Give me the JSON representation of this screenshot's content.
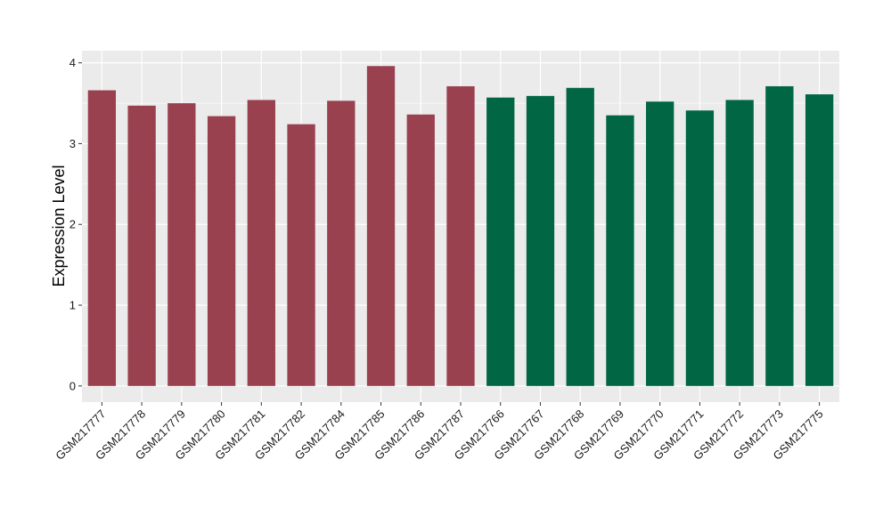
{
  "chart_data": {
    "type": "bar",
    "title": "",
    "xlabel": "",
    "ylabel": "Expression Level",
    "ylim": [
      -0.2,
      4.15
    ],
    "yticks": [
      0,
      1,
      2,
      3,
      4
    ],
    "grid": true,
    "legend": "none",
    "categories": [
      "GSM217777",
      "GSM217778",
      "GSM217779",
      "GSM217780",
      "GSM217781",
      "GSM217782",
      "GSM217784",
      "GSM217785",
      "GSM217786",
      "GSM217787",
      "GSM217766",
      "GSM217767",
      "GSM217768",
      "GSM217769",
      "GSM217770",
      "GSM217771",
      "GSM217772",
      "GSM217773",
      "GSM217775"
    ],
    "values": [
      3.66,
      3.47,
      3.5,
      3.34,
      3.54,
      3.24,
      3.53,
      3.96,
      3.36,
      3.71,
      3.57,
      3.59,
      3.69,
      3.35,
      3.52,
      3.41,
      3.54,
      3.71,
      3.61
    ],
    "bar_colors": [
      "#9a4150",
      "#9a4150",
      "#9a4150",
      "#9a4150",
      "#9a4150",
      "#9a4150",
      "#9a4150",
      "#9a4150",
      "#9a4150",
      "#9a4150",
      "#006644",
      "#006644",
      "#006644",
      "#006644",
      "#006644",
      "#006644",
      "#006644",
      "#006644",
      "#006644"
    ],
    "panel_background": "#ebebeb",
    "grid_color": "#ffffff"
  }
}
